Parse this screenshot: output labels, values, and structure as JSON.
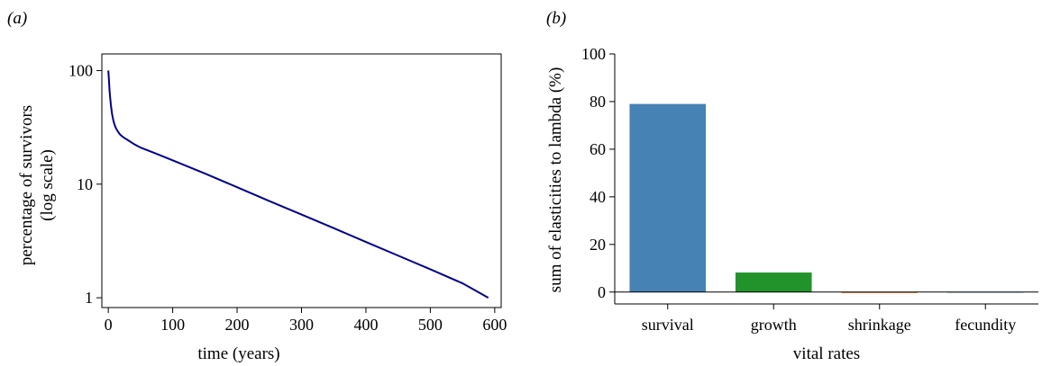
{
  "panels": {
    "a_label": "(a)",
    "b_label": "(b)"
  },
  "colors": {
    "line": "#00008b",
    "survival": "#4682b4",
    "growth": "#22932a",
    "shrinkage": "#e06a10",
    "fecundity": "#4682b4",
    "axis": "#000000"
  },
  "chart_data": [
    {
      "type": "line",
      "panel": "(a)",
      "xlabel": "time (years)",
      "ylabel": "percentage of survivors",
      "ylabel_line2": "(log scale)",
      "yscale": "log",
      "xlim": [
        -10,
        610
      ],
      "ylim": [
        0.82,
        140
      ],
      "xticks": [
        0,
        100,
        200,
        300,
        400,
        500,
        600
      ],
      "yticks": [
        1,
        10,
        100
      ],
      "grid": false,
      "series": [
        {
          "x": [
            0,
            1,
            2,
            3,
            4,
            5,
            6,
            8,
            10,
            12,
            15,
            18,
            21,
            25,
            30,
            40,
            50,
            75,
            100,
            150,
            200,
            250,
            300,
            350,
            400,
            450,
            500,
            550,
            590
          ],
          "y": [
            100,
            83,
            66,
            57,
            50,
            45,
            41,
            36,
            33,
            31,
            29,
            27.5,
            26.5,
            25.5,
            24.5,
            22.5,
            21,
            18.5,
            16.2,
            12.4,
            9.4,
            7.1,
            5.4,
            4.1,
            3.1,
            2.35,
            1.78,
            1.34,
            1.0
          ]
        }
      ]
    },
    {
      "type": "bar",
      "panel": "(b)",
      "xlabel": "vital rates",
      "ylabel": "sum of elasticities to lambda (%)",
      "categories": [
        "survival",
        "growth",
        "shrinkage",
        "fecundity"
      ],
      "values": [
        79,
        8.2,
        -0.4,
        0.1
      ],
      "ylim": [
        -5,
        100
      ],
      "yticks": [
        0,
        20,
        40,
        60,
        80,
        100
      ],
      "grid": false
    }
  ]
}
